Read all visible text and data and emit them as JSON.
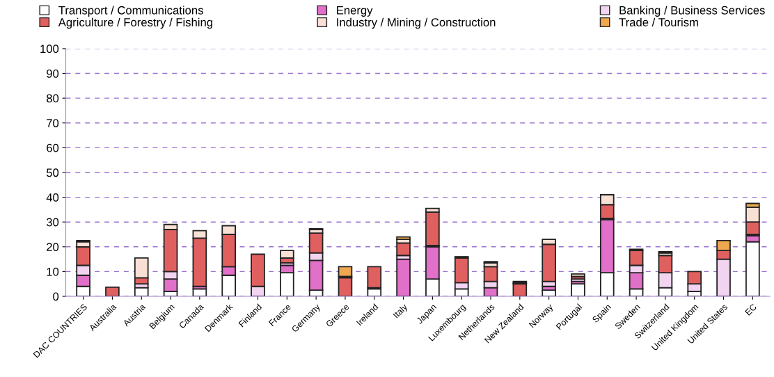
{
  "chart_data": {
    "type": "bar",
    "stacked": true,
    "categories": [
      "DAC COUNTRIES",
      "Australia",
      "Austria",
      "Belgium",
      "Canada",
      "Denmark",
      "Finland",
      "France",
      "Germany",
      "Greece",
      "Ireland",
      "Italy",
      "Japan",
      "Luxembourg",
      "Netherlands",
      "New Zealand",
      "Norway",
      "Portugal",
      "Spain",
      "Sweden",
      "Switzerland",
      "United Kingdom",
      "United States",
      "EC"
    ],
    "series": [
      {
        "name": "Transport / Communications",
        "color": "#ffffff",
        "values": [
          4,
          null,
          3.5,
          2,
          3,
          8.5,
          0,
          9.5,
          2.5,
          0,
          3,
          null,
          7,
          3,
          0,
          0,
          2.5,
          5,
          9.5,
          3,
          3.5,
          2,
          null,
          22
        ]
      },
      {
        "name": "Energy",
        "color": "#e070c8",
        "values": [
          4.5,
          0,
          null,
          5,
          1,
          3.5,
          0,
          3,
          12,
          0,
          0,
          15,
          13,
          0,
          3.5,
          0,
          1.5,
          1,
          21.5,
          6.5,
          0,
          0,
          0,
          2.5
        ]
      },
      {
        "name": "Banking / Business Services",
        "color": "#f2d4f0",
        "values": [
          4,
          0,
          1.5,
          3,
          0,
          0,
          4,
          1,
          3,
          0,
          0.5,
          1.5,
          0.5,
          2.5,
          2.5,
          0,
          2,
          1,
          0.5,
          3,
          6,
          3,
          15,
          0.5
        ]
      },
      {
        "name": "Agriculture / Forestry / Fishing",
        "color": "#e06060",
        "values": [
          7.5,
          3.7,
          2.5,
          17,
          19.5,
          13,
          13,
          2,
          8,
          7.5,
          8.5,
          5,
          13.5,
          10,
          6,
          5,
          15,
          1,
          5.5,
          6,
          7,
          5,
          3.5,
          5
        ]
      },
      {
        "name": "Industry / Mining / Construction",
        "color": "#f8e0d4",
        "values": [
          2,
          0,
          8,
          2,
          3,
          3.5,
          0,
          3,
          1.5,
          0.5,
          0,
          1.5,
          1.5,
          0.5,
          1.5,
          0.5,
          2,
          1,
          4,
          0.5,
          1,
          0,
          0,
          6
        ]
      },
      {
        "name": "Trade / Tourism",
        "color": "#f0a850",
        "values": [
          0.5,
          0,
          0,
          0,
          0,
          0,
          0,
          0,
          0.3,
          4,
          0,
          1,
          0,
          0,
          0.5,
          0.5,
          0,
          0,
          0,
          0,
          0.5,
          0,
          4,
          1.5
        ]
      }
    ],
    "ylim": [
      0,
      100
    ],
    "yticks": [
      0,
      10,
      20,
      30,
      40,
      50,
      60,
      70,
      80,
      90,
      100
    ],
    "grid": "y",
    "legend": "top"
  }
}
